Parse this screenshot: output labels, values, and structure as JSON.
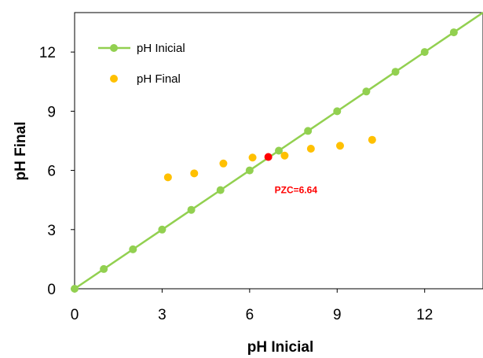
{
  "chart_data": {
    "type": "scatter",
    "xlabel": "pH Inicial",
    "ylabel": "pH Final",
    "xlim": [
      0,
      14
    ],
    "ylim": [
      0,
      14
    ],
    "xticks": [
      0,
      3,
      6,
      9,
      12
    ],
    "yticks": [
      0,
      3,
      6,
      9,
      12
    ],
    "grid": false,
    "legend_position": "top-left",
    "series": [
      {
        "name": "pH Inicial",
        "style": "line-markers",
        "color": "#92D050",
        "x": [
          0,
          1,
          2,
          3,
          4,
          5,
          6,
          7,
          8,
          9,
          10,
          11,
          12,
          13
        ],
        "y": [
          0,
          1,
          2,
          3,
          4,
          5,
          6,
          7,
          8,
          9,
          10,
          11,
          12,
          13
        ]
      },
      {
        "name": "pH Final",
        "style": "markers",
        "color": "#FFC000",
        "x": [
          3.2,
          4.1,
          5.1,
          6.1,
          7.2,
          8.1,
          9.1,
          10.2
        ],
        "y": [
          5.65,
          5.85,
          6.35,
          6.65,
          6.75,
          7.1,
          7.25,
          7.55
        ]
      }
    ],
    "annotations": [
      {
        "label": "PZC=6.64",
        "x": 6.64,
        "y": 6.68,
        "color": "#FF0000"
      }
    ]
  }
}
